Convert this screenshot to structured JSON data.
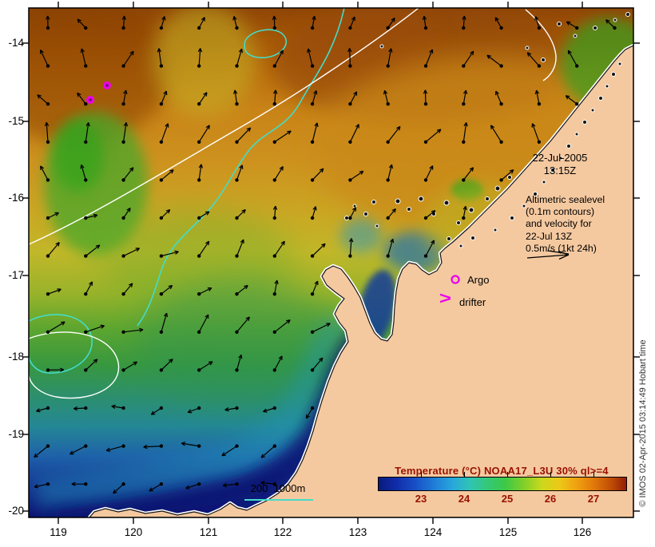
{
  "figure": {
    "datetime_annotation": {
      "date": "22-Jul-2005",
      "time": "13:15Z"
    },
    "altimetric_note_lines": [
      "Altimetric sealevel",
      "(0.1m contours)",
      "and velocity for",
      "22-Jul 13Z",
      "0.5m/s (1kt 24h)"
    ],
    "legend": {
      "argo": "Argo",
      "drifter": "drifter",
      "bathymetry_scale": "200  1000m"
    },
    "credit": "© IMOS 02-Apr-2015 03:14:49 Hobart time"
  },
  "axes": {
    "x_ticks": [
      "119",
      "120",
      "121",
      "122",
      "123",
      "124",
      "125",
      "126"
    ],
    "y_ticks": [
      "-14",
      "-15",
      "-16",
      "-17",
      "-18",
      "-19",
      "-20"
    ]
  },
  "colorbar": {
    "title": "Temperature (°C) NOAA17_L3U 30% ql>=4",
    "ticks": [
      "23",
      "24",
      "25",
      "26",
      "27"
    ]
  },
  "colors": {
    "land": "#f5c9a0",
    "marker_magenta": "#ee00ee",
    "bathy_contour_cyan": "#44dcc8",
    "sealevel_contour_white": "#ffffff",
    "colorbar_label_red": "#991100",
    "arrow_black": "#000000"
  }
}
